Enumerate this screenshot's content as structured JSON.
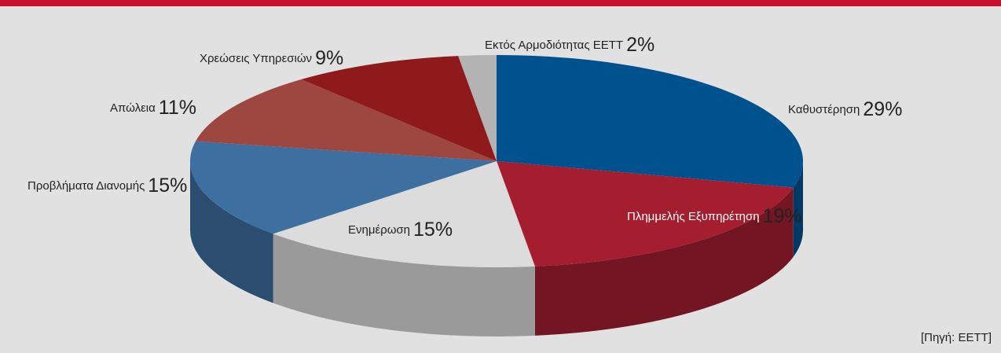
{
  "chart_data": {
    "type": "pie",
    "categories": [
      "Καθυστέρηση",
      "Πλημμελής Εξυπηρέτηση",
      "Ενημέρωση",
      "Προβλήματα Διανομής",
      "Απώλεια",
      "Χρεώσεις Υπηρεσιών",
      "Εκτός Αρμοδιότητας ΕΕΤΤ"
    ],
    "values": [
      29,
      19,
      15,
      15,
      11,
      9,
      2
    ],
    "value_labels": [
      "29%",
      "19%",
      "15%",
      "15%",
      "11%",
      "9%",
      "2%"
    ],
    "colors": [
      "#00528f",
      "#a51e30",
      "#dcdcdc",
      "#3d6fa0",
      "#9e4640",
      "#8e1a1c",
      "#b3b3b3"
    ],
    "source": "[Πηγή: ΕΕΤΤ]"
  }
}
